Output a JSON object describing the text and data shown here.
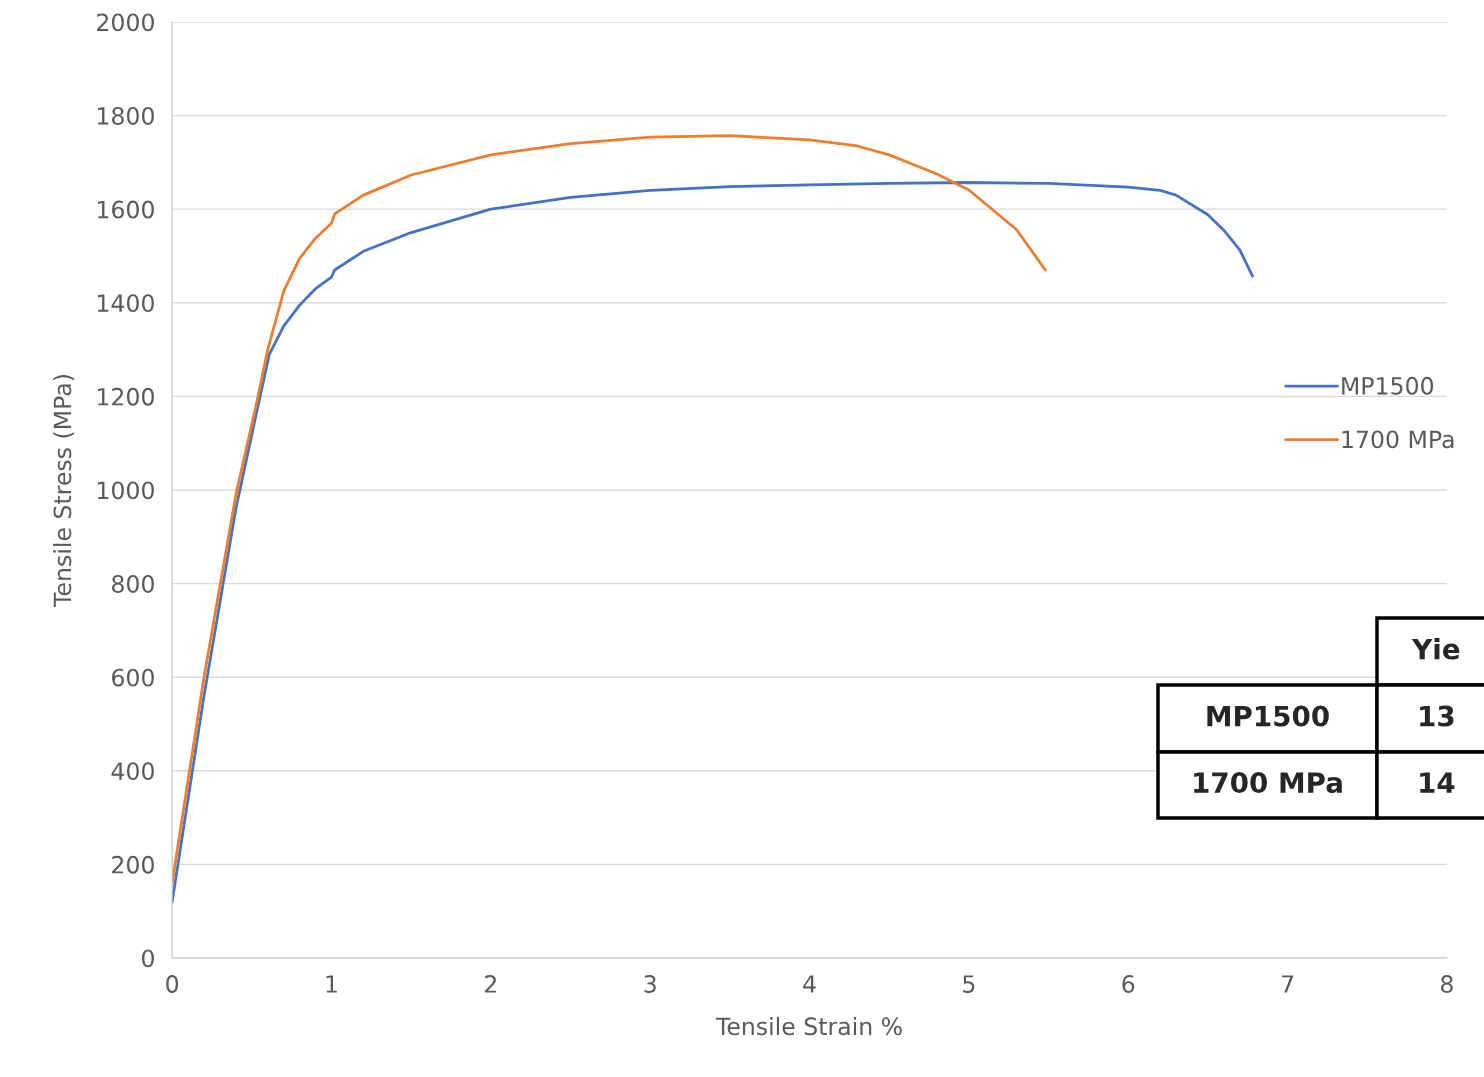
{
  "chart_data": {
    "type": "line",
    "xlabel": "Tensile Strain %",
    "ylabel": "Tensile Stress (MPa)",
    "xlim": [
      0,
      8
    ],
    "xticks": [
      0,
      1,
      2,
      3,
      4,
      5,
      6,
      7,
      8
    ],
    "ylim": [
      0,
      2000
    ],
    "yticks": [
      0,
      200,
      400,
      600,
      800,
      1000,
      1200,
      1400,
      1600,
      1800,
      2000
    ],
    "grid": "y",
    "legend": "right",
    "marker": "none",
    "line_style": "solid",
    "series": [
      {
        "name": "MP1500",
        "color": "#4472c4",
        "x": [
          0,
          0.2,
          0.4,
          0.52,
          0.61,
          0.7,
          0.8,
          0.9,
          1.0,
          1.02,
          1.2,
          1.5,
          2,
          2.5,
          3,
          3.5,
          4,
          4.5,
          5,
          5.5,
          6,
          6.2,
          6.3,
          6.5,
          6.6,
          6.7,
          6.78
        ],
        "values": [
          120,
          560,
          960,
          1150,
          1290,
          1350,
          1395,
          1430,
          1455,
          1470,
          1510,
          1550,
          1600,
          1625,
          1640,
          1648,
          1652,
          1655,
          1657,
          1655,
          1647,
          1640,
          1630,
          1588,
          1555,
          1513,
          1457
        ]
      },
      {
        "name": "1700 MPa",
        "color": "#ed7d31",
        "x": [
          0,
          0.2,
          0.4,
          0.52,
          0.6,
          0.7,
          0.8,
          0.9,
          1.0,
          1.02,
          1.2,
          1.5,
          2,
          2.5,
          3,
          3.5,
          4,
          4.3,
          4.5,
          4.8,
          5,
          5.3,
          5.48
        ],
        "values": [
          160,
          600,
          990,
          1170,
          1300,
          1425,
          1495,
          1538,
          1570,
          1590,
          1630,
          1673,
          1716,
          1740,
          1754,
          1757,
          1748,
          1735,
          1716,
          1675,
          1641,
          1556,
          1470
        ]
      }
    ],
    "annotations": [
      "Yie",
      "MP1500",
      "13",
      "1700 MPa",
      "14"
    ]
  }
}
